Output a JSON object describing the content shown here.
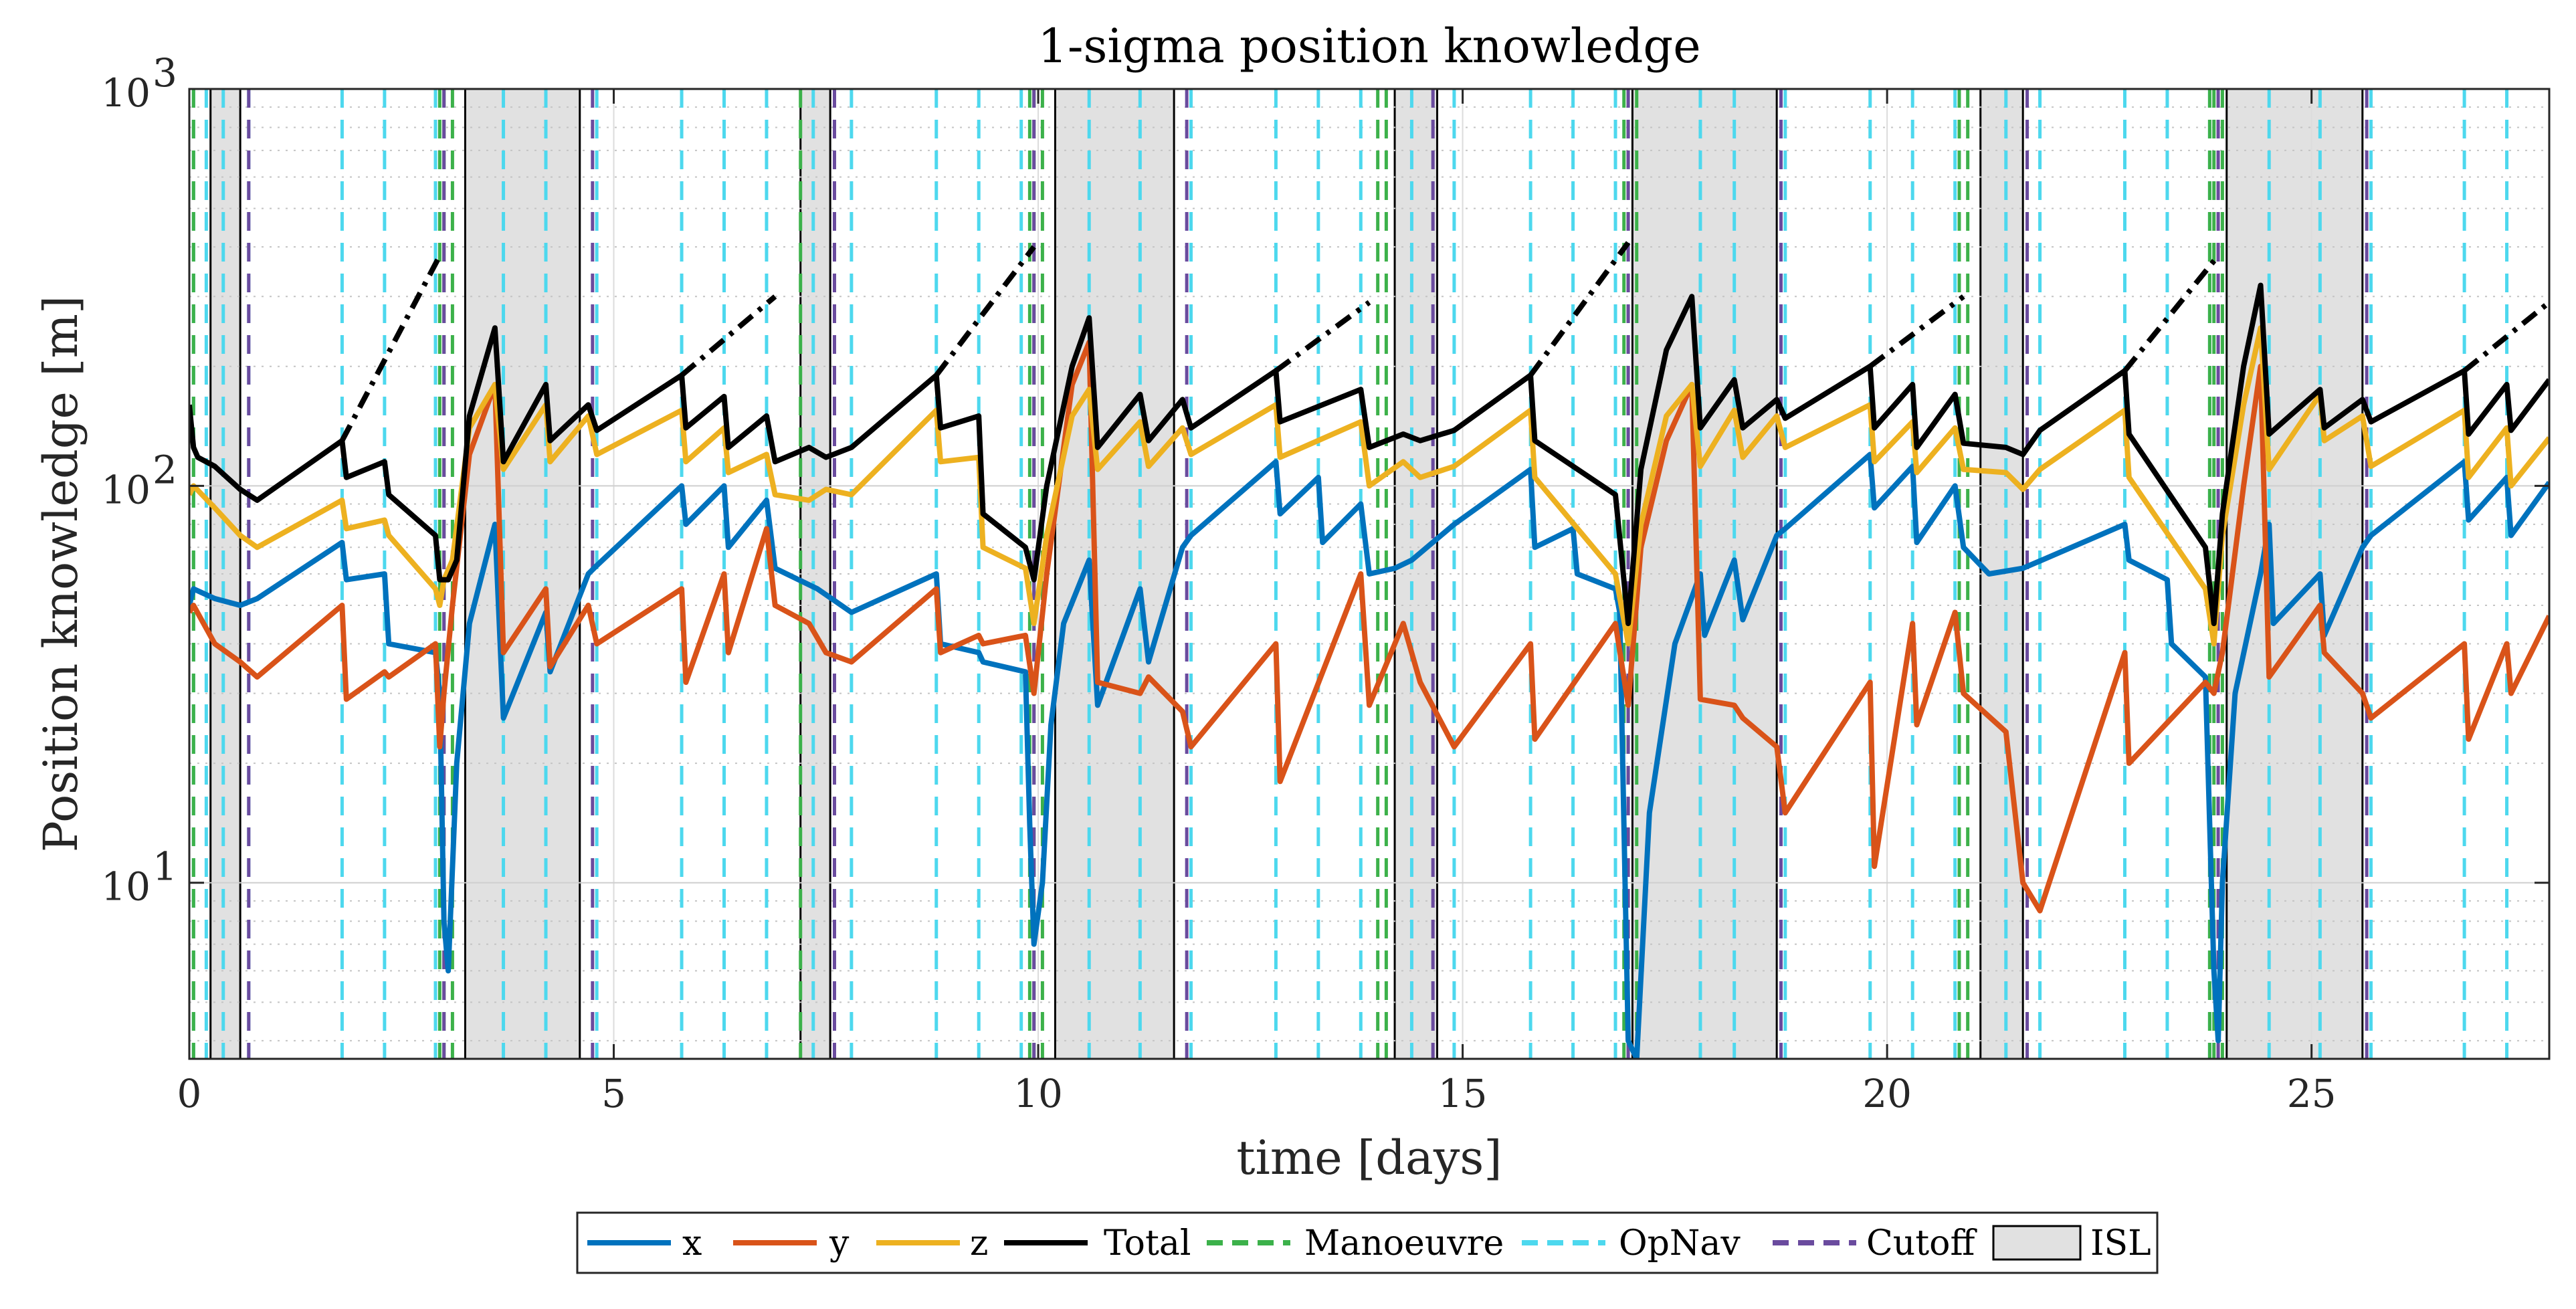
{
  "chart_data": {
    "type": "line",
    "title": "1-sigma position knowledge",
    "xlabel": "time [days]",
    "ylabel": "Position knowledge [m]",
    "xlim": [
      0,
      27.8
    ],
    "ylim": [
      3.6,
      1000
    ],
    "yscale": "log",
    "grid": "on",
    "xticks": [
      0,
      5,
      10,
      15,
      20,
      25
    ],
    "xtick_labels": [
      "0",
      "5",
      "10",
      "15",
      "20",
      "25"
    ],
    "yticks": [
      {
        "value": 10,
        "base": "10",
        "exp": "1"
      },
      {
        "value": 100,
        "base": "10",
        "exp": "2"
      },
      {
        "value": 1000,
        "base": "10",
        "exp": "3"
      }
    ],
    "colors": {
      "x": "#0072BD",
      "y": "#D95319",
      "z": "#EDB120",
      "total": "#000000",
      "manoeuvre": "#3cb14a",
      "opnav": "#4dd8ee",
      "cutoff": "#6a4b9e",
      "isl_fill": "#e1e1e1"
    },
    "legend": {
      "position": "bottom",
      "entries": [
        {
          "key": "x",
          "label": "x",
          "style": "line"
        },
        {
          "key": "y",
          "label": "y",
          "style": "line"
        },
        {
          "key": "z",
          "label": "z",
          "style": "line"
        },
        {
          "key": "total",
          "label": "Total",
          "style": "line"
        },
        {
          "key": "manoeuvre",
          "label": "Manoeuvre",
          "style": "dash"
        },
        {
          "key": "opnav",
          "label": "OpNav",
          "style": "dash"
        },
        {
          "key": "cutoff",
          "label": "Cutoff",
          "style": "dash"
        },
        {
          "key": "isl",
          "label": "ISL",
          "style": "box"
        }
      ]
    },
    "isl_intervals": [
      [
        0.25,
        0.6
      ],
      [
        3.25,
        4.6
      ],
      [
        7.2,
        7.55
      ],
      [
        10.2,
        11.6
      ],
      [
        14.2,
        14.7
      ],
      [
        17.0,
        18.7
      ],
      [
        21.1,
        21.6
      ],
      [
        24.0,
        25.6
      ]
    ],
    "manoeuvre_lines": [
      0.05,
      2.95,
      3.0,
      3.1,
      7.2,
      9.9,
      9.95,
      10.05,
      14.0,
      14.1,
      16.9,
      16.95,
      17.05,
      20.85,
      20.95,
      23.8,
      23.85,
      23.95
    ],
    "opnav_lines": [
      0.05,
      0.2,
      0.4,
      0.7,
      1.8,
      2.3,
      2.9,
      3.7,
      4.2,
      4.8,
      5.8,
      6.3,
      6.8,
      7.35,
      7.8,
      8.8,
      9.3,
      9.8,
      10.6,
      11.2,
      11.8,
      12.8,
      13.3,
      13.8,
      14.4,
      14.9,
      15.8,
      16.3,
      16.8,
      17.8,
      18.2,
      18.8,
      19.8,
      20.3,
      20.8,
      21.4,
      21.8,
      22.8,
      23.3,
      23.8,
      24.5,
      25.1,
      25.7,
      26.8,
      27.3
    ],
    "cutoff_lines": [
      0.7,
      3.0,
      4.75,
      7.6,
      9.95,
      11.75,
      14.65,
      16.95,
      18.75,
      21.65,
      23.9,
      25.65
    ],
    "series": [
      {
        "name": "x",
        "key": "x",
        "x": [
          0,
          0.05,
          0.3,
          0.6,
          0.8,
          1.8,
          1.85,
          2.3,
          2.35,
          2.9,
          2.95,
          3.0,
          3.05,
          3.15,
          3.3,
          3.6,
          3.7,
          4.2,
          4.25,
          4.7,
          4.8,
          5.8,
          5.85,
          6.3,
          6.35,
          6.8,
          6.9,
          7.4,
          7.8,
          8.8,
          8.85,
          9.3,
          9.35,
          9.85,
          9.9,
          9.95,
          10.05,
          10.15,
          10.3,
          10.6,
          10.7,
          11.2,
          11.3,
          11.7,
          11.8,
          12.8,
          12.85,
          13.3,
          13.35,
          13.8,
          13.9,
          14.2,
          14.4,
          14.9,
          15.8,
          15.85,
          16.3,
          16.35,
          16.8,
          16.85,
          16.95,
          17.05,
          17.2,
          17.5,
          17.8,
          17.85,
          18.2,
          18.3,
          18.7,
          18.8,
          19.8,
          19.85,
          20.3,
          20.35,
          20.8,
          20.9,
          21.2,
          21.6,
          22.8,
          22.85,
          23.3,
          23.35,
          23.75,
          23.85,
          23.9,
          23.95,
          24.1,
          24.4,
          24.5,
          24.55,
          25.1,
          25.15,
          25.6,
          25.7,
          26.8,
          26.85,
          27.3,
          27.35,
          27.8
        ],
        "y": [
          50,
          55,
          52,
          50,
          52,
          72,
          58,
          60,
          40,
          38,
          30,
          8,
          6,
          20,
          45,
          80,
          26,
          48,
          34,
          60,
          63,
          100,
          80,
          100,
          70,
          92,
          62,
          55,
          48,
          60,
          40,
          38,
          36,
          34,
          14,
          7,
          10,
          25,
          45,
          65,
          28,
          55,
          36,
          70,
          75,
          115,
          85,
          105,
          72,
          90,
          60,
          62,
          65,
          80,
          110,
          70,
          78,
          60,
          55,
          48,
          4,
          3.6,
          15,
          40,
          60,
          42,
          65,
          46,
          75,
          78,
          120,
          88,
          112,
          72,
          100,
          70,
          60,
          62,
          80,
          65,
          58,
          40,
          33,
          6,
          4,
          10,
          30,
          60,
          80,
          45,
          60,
          42,
          70,
          75,
          115,
          82,
          105,
          75,
          102
        ]
      },
      {
        "name": "y",
        "key": "y",
        "x": [
          0,
          0.05,
          0.3,
          0.6,
          0.8,
          1.8,
          1.85,
          2.3,
          2.35,
          2.9,
          2.95,
          3.0,
          3.1,
          3.3,
          3.6,
          3.7,
          4.2,
          4.25,
          4.7,
          4.8,
          5.8,
          5.85,
          6.3,
          6.35,
          6.8,
          6.9,
          7.3,
          7.5,
          7.8,
          8.8,
          8.85,
          9.3,
          9.35,
          9.85,
          9.95,
          10.1,
          10.4,
          10.6,
          10.7,
          11.2,
          11.3,
          11.7,
          11.8,
          12.8,
          12.85,
          13.8,
          13.9,
          14.3,
          14.5,
          14.9,
          15.8,
          15.85,
          16.8,
          16.95,
          17.1,
          17.4,
          17.7,
          17.8,
          18.2,
          18.3,
          18.7,
          18.8,
          19.8,
          19.85,
          20.3,
          20.35,
          20.8,
          20.9,
          21.4,
          21.6,
          21.8,
          22.8,
          22.85,
          23.75,
          23.85,
          23.95,
          24.2,
          24.4,
          24.5,
          25.1,
          25.15,
          25.6,
          25.7,
          26.8,
          26.85,
          27.3,
          27.35,
          27.8
        ],
        "y": [
          48,
          50,
          40,
          36,
          33,
          50,
          29,
          34,
          33,
          40,
          22,
          30,
          50,
          120,
          180,
          38,
          55,
          35,
          50,
          40,
          55,
          32,
          60,
          38,
          78,
          50,
          45,
          38,
          36,
          55,
          38,
          42,
          40,
          42,
          30,
          60,
          180,
          230,
          32,
          30,
          33,
          27,
          22,
          40,
          18,
          60,
          28,
          45,
          32,
          22,
          40,
          23,
          45,
          28,
          70,
          130,
          180,
          29,
          28,
          26,
          22,
          15,
          32,
          11,
          45,
          25,
          48,
          30,
          24,
          10,
          8.5,
          38,
          20,
          32,
          30,
          38,
          100,
          200,
          33,
          50,
          38,
          30,
          26,
          40,
          23,
          40,
          30,
          47
        ]
      },
      {
        "name": "z",
        "key": "z",
        "x": [
          0,
          0.05,
          0.3,
          0.6,
          0.8,
          1.8,
          1.85,
          2.3,
          2.35,
          2.9,
          2.95,
          3.0,
          3.1,
          3.3,
          3.6,
          3.7,
          4.2,
          4.25,
          4.7,
          4.8,
          5.8,
          5.85,
          6.3,
          6.35,
          6.8,
          6.9,
          7.3,
          7.5,
          7.8,
          8.8,
          8.85,
          9.3,
          9.35,
          9.85,
          9.95,
          10.1,
          10.4,
          10.6,
          10.7,
          11.2,
          11.3,
          11.7,
          11.8,
          12.8,
          12.85,
          13.8,
          13.9,
          14.3,
          14.5,
          14.9,
          15.8,
          15.85,
          16.8,
          16.95,
          17.1,
          17.4,
          17.7,
          17.8,
          18.2,
          18.3,
          18.7,
          18.8,
          19.8,
          19.85,
          20.3,
          20.35,
          20.8,
          20.9,
          21.4,
          21.6,
          21.8,
          22.8,
          22.85,
          23.75,
          23.85,
          23.95,
          24.2,
          24.4,
          24.5,
          25.1,
          25.15,
          25.6,
          25.7,
          26.8,
          26.85,
          27.3,
          27.35,
          27.8
        ],
        "y": [
          95,
          100,
          88,
          75,
          70,
          92,
          78,
          82,
          75,
          55,
          50,
          58,
          65,
          140,
          180,
          110,
          160,
          115,
          150,
          120,
          155,
          115,
          140,
          108,
          120,
          95,
          92,
          98,
          95,
          155,
          115,
          118,
          70,
          62,
          45,
          75,
          150,
          175,
          110,
          145,
          112,
          140,
          120,
          160,
          118,
          145,
          100,
          115,
          105,
          112,
          155,
          105,
          60,
          40,
          80,
          150,
          180,
          112,
          155,
          118,
          150,
          125,
          160,
          115,
          145,
          108,
          140,
          110,
          108,
          98,
          110,
          155,
          105,
          55,
          40,
          75,
          160,
          250,
          110,
          170,
          130,
          150,
          112,
          155,
          105,
          140,
          100,
          132
        ]
      },
      {
        "name": "Total",
        "key": "total",
        "x": [
          0,
          0.05,
          0.1,
          0.3,
          0.6,
          0.8,
          1.8,
          1.85,
          2.3,
          2.35,
          2.9,
          2.95,
          3.05,
          3.15,
          3.3,
          3.6,
          3.7,
          4.2,
          4.25,
          4.7,
          4.8,
          5.8,
          5.85,
          6.3,
          6.35,
          6.8,
          6.9,
          7.3,
          7.5,
          7.8,
          8.8,
          8.85,
          9.3,
          9.35,
          9.85,
          9.95,
          10.1,
          10.4,
          10.6,
          10.7,
          11.2,
          11.3,
          11.7,
          11.8,
          12.8,
          12.85,
          13.8,
          13.9,
          14.3,
          14.5,
          14.9,
          15.8,
          15.85,
          16.8,
          16.95,
          17.1,
          17.4,
          17.7,
          17.8,
          18.2,
          18.3,
          18.7,
          18.8,
          19.8,
          19.85,
          20.3,
          20.35,
          20.8,
          20.9,
          21.4,
          21.6,
          21.8,
          22.8,
          22.85,
          23.75,
          23.85,
          23.95,
          24.2,
          24.4,
          24.5,
          25.1,
          25.15,
          25.6,
          25.7,
          26.8,
          26.85,
          27.3,
          27.35,
          27.8
        ],
        "y": [
          160,
          125,
          118,
          112,
          98,
          92,
          130,
          105,
          115,
          95,
          75,
          58,
          58,
          65,
          150,
          250,
          115,
          180,
          130,
          160,
          138,
          190,
          140,
          168,
          125,
          150,
          115,
          125,
          118,
          125,
          190,
          140,
          150,
          85,
          70,
          58,
          100,
          200,
          265,
          125,
          170,
          130,
          165,
          140,
          195,
          145,
          175,
          125,
          135,
          130,
          138,
          190,
          130,
          95,
          45,
          110,
          220,
          300,
          140,
          185,
          140,
          165,
          148,
          200,
          140,
          180,
          125,
          170,
          128,
          125,
          120,
          138,
          195,
          135,
          70,
          45,
          85,
          200,
          320,
          135,
          175,
          140,
          165,
          145,
          195,
          135,
          180,
          138,
          185
        ]
      }
    ],
    "extrapolations": [
      {
        "x": [
          1.8,
          2.95
        ],
        "y": [
          130,
          380
        ]
      },
      {
        "x": [
          5.8,
          6.9
        ],
        "y": [
          190,
          300
        ]
      },
      {
        "x": [
          8.8,
          9.95
        ],
        "y": [
          190,
          400
        ]
      },
      {
        "x": [
          12.8,
          13.9
        ],
        "y": [
          195,
          290
        ]
      },
      {
        "x": [
          15.8,
          16.95
        ],
        "y": [
          190,
          410
        ]
      },
      {
        "x": [
          19.8,
          20.9
        ],
        "y": [
          200,
          300
        ]
      },
      {
        "x": [
          22.8,
          23.9
        ],
        "y": [
          195,
          380
        ]
      },
      {
        "x": [
          26.8,
          27.8
        ],
        "y": [
          195,
          290
        ]
      }
    ]
  }
}
